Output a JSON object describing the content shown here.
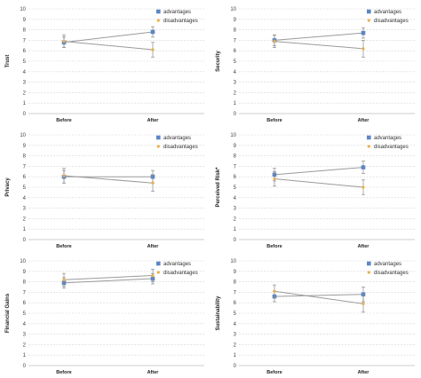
{
  "colors": {
    "advantages": "#5b86c5",
    "disadvantages": "#e8b14a",
    "line": "#9a9a9a",
    "errorbar": "#8a8a8a",
    "gridline": "#d4d4d4",
    "axis": "#bdbdbd"
  },
  "chart_data": [
    {
      "type": "line",
      "ylabel": "Trust",
      "categories": [
        "Before",
        "After"
      ],
      "ylim": [
        0,
        10
      ],
      "yticks": [
        0,
        1,
        2,
        3,
        4,
        5,
        6,
        7,
        8,
        9,
        10
      ],
      "grid": true,
      "legend": "top-right",
      "series": [
        {
          "name": "advantages",
          "values": [
            6.8,
            7.8
          ],
          "errors": [
            0.5,
            0.5
          ]
        },
        {
          "name": "disadvantages",
          "values": [
            6.9,
            6.1
          ],
          "errors": [
            0.6,
            0.7
          ]
        }
      ]
    },
    {
      "type": "line",
      "ylabel": "Security",
      "categories": [
        "Before",
        "After"
      ],
      "ylim": [
        0,
        10
      ],
      "yticks": [
        0,
        1,
        2,
        3,
        4,
        5,
        6,
        7,
        8,
        9,
        10
      ],
      "grid": true,
      "legend": "top-right",
      "series": [
        {
          "name": "advantages",
          "values": [
            7.0,
            7.7
          ],
          "errors": [
            0.5,
            0.5
          ]
        },
        {
          "name": "disadvantages",
          "values": [
            6.9,
            6.2
          ],
          "errors": [
            0.6,
            0.8
          ]
        }
      ]
    },
    {
      "type": "line",
      "ylabel": "Privacy",
      "categories": [
        "Before",
        "After"
      ],
      "ylim": [
        0,
        10
      ],
      "yticks": [
        0,
        1,
        2,
        3,
        4,
        5,
        6,
        7,
        8,
        9,
        10
      ],
      "grid": true,
      "legend": "top-right",
      "series": [
        {
          "name": "advantages",
          "values": [
            6.0,
            6.0
          ],
          "errors": [
            0.6,
            0.6
          ]
        },
        {
          "name": "disadvantages",
          "values": [
            6.1,
            5.4
          ],
          "errors": [
            0.7,
            0.8
          ]
        }
      ]
    },
    {
      "type": "line",
      "ylabel": "Perceived Risk*",
      "categories": [
        "Before",
        "After"
      ],
      "ylim": [
        0,
        10
      ],
      "yticks": [
        0,
        1,
        2,
        3,
        4,
        5,
        6,
        7,
        8,
        9,
        10
      ],
      "grid": true,
      "legend": "top-right",
      "series": [
        {
          "name": "advantages",
          "values": [
            6.2,
            6.9
          ],
          "errors": [
            0.6,
            0.6
          ]
        },
        {
          "name": "disadvantages",
          "values": [
            5.8,
            5.0
          ],
          "errors": [
            0.7,
            0.7
          ]
        }
      ]
    },
    {
      "type": "line",
      "ylabel": "Financial Gains",
      "categories": [
        "Before",
        "After"
      ],
      "ylim": [
        0,
        10
      ],
      "yticks": [
        0,
        1,
        2,
        3,
        4,
        5,
        6,
        7,
        8,
        9,
        10
      ],
      "grid": true,
      "legend": "top-right",
      "series": [
        {
          "name": "advantages",
          "values": [
            7.9,
            8.3
          ],
          "errors": [
            0.5,
            0.5
          ]
        },
        {
          "name": "disadvantages",
          "values": [
            8.2,
            8.6
          ],
          "errors": [
            0.6,
            0.6
          ]
        }
      ]
    },
    {
      "type": "line",
      "ylabel": "Sustainability",
      "categories": [
        "Before",
        "After"
      ],
      "ylim": [
        0,
        10
      ],
      "yticks": [
        0,
        1,
        2,
        3,
        4,
        5,
        6,
        7,
        8,
        9,
        10
      ],
      "grid": true,
      "legend": "top-right",
      "series": [
        {
          "name": "advantages",
          "values": [
            6.6,
            6.8
          ],
          "errors": [
            0.5,
            0.7
          ]
        },
        {
          "name": "disadvantages",
          "values": [
            7.1,
            5.9
          ],
          "errors": [
            0.6,
            0.8
          ]
        }
      ]
    }
  ]
}
